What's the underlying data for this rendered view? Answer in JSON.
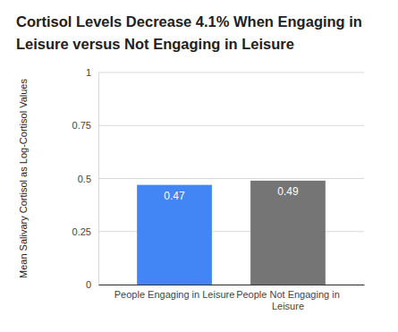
{
  "chart_data": {
    "type": "bar",
    "title": "Cortisol Levels Decrease 4.1% When Engaging in Leisure versus Not Engaging in Leisure",
    "y_label": "Mean Salivary Cortisol as Log-Cortisol Values",
    "categories": [
      "People Engaging in Leisure",
      "People Not Engaging in Leisure"
    ],
    "values": [
      0.47,
      0.49
    ],
    "colors": [
      "#4285f4",
      "#757575"
    ],
    "ylim": [
      0,
      1
    ],
    "yticks": [
      0,
      0.25,
      0.5,
      0.75,
      1
    ],
    "grid": true,
    "data_labels": true
  }
}
